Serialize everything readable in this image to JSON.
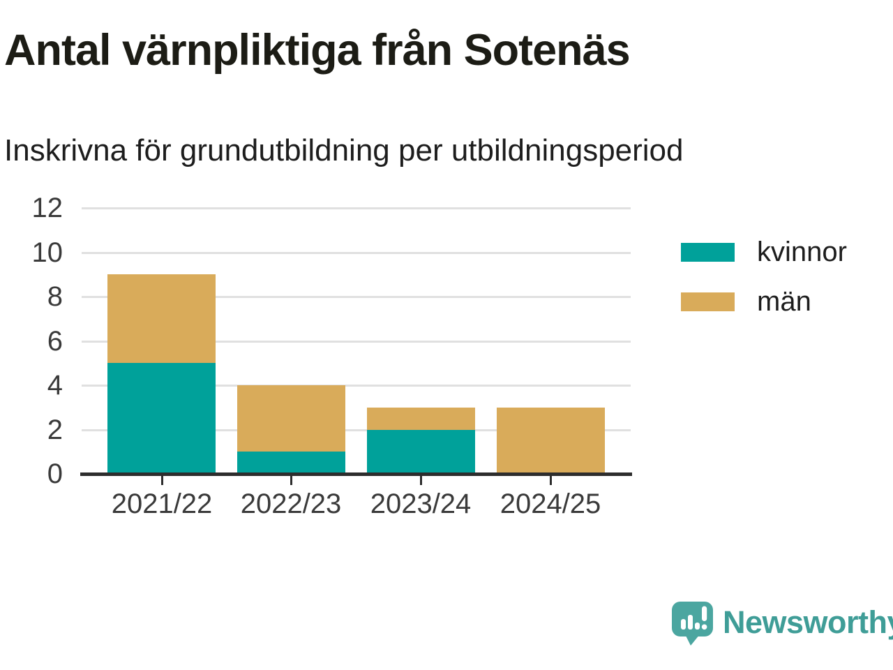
{
  "title": "Antal värnpliktiga från Sotenäs",
  "subtitle": "Inskrivna för grundutbildning per utbildningsperiod",
  "branding": {
    "logo_text": "Newsworthy",
    "logo_icon": "newsworthy-speech-bubble-bar-chart-icon"
  },
  "colors": {
    "kvinnor": "#00a19a",
    "man": "#d9ab5a",
    "grid": "#e0e0e0",
    "axis": "#2d2d2d",
    "tick_label": "#3a3a3a",
    "title_text": "#1c1c15",
    "logo_mark": "#4ba6a0",
    "logo_text": "#3f9d97",
    "background": "#ffffff"
  },
  "chart_data": {
    "type": "bar",
    "stacked": true,
    "title": "Antal värnpliktiga från Sotenäs",
    "subtitle": "Inskrivna för grundutbildning per utbildningsperiod",
    "categories": [
      "2021/22",
      "2022/23",
      "2023/24",
      "2024/25"
    ],
    "series": [
      {
        "name": "kvinnor",
        "color": "#00a19a",
        "values": [
          5,
          1,
          2,
          0
        ]
      },
      {
        "name": "män",
        "color": "#d9ab5a",
        "values": [
          4,
          3,
          1,
          3
        ]
      }
    ],
    "totals": [
      9,
      4,
      3,
      3
    ],
    "xlabel": "",
    "ylabel": "",
    "ylim": [
      0,
      12
    ],
    "yticks": [
      0,
      2,
      4,
      6,
      8,
      10,
      12
    ],
    "grid": true,
    "legend_position": "right"
  }
}
